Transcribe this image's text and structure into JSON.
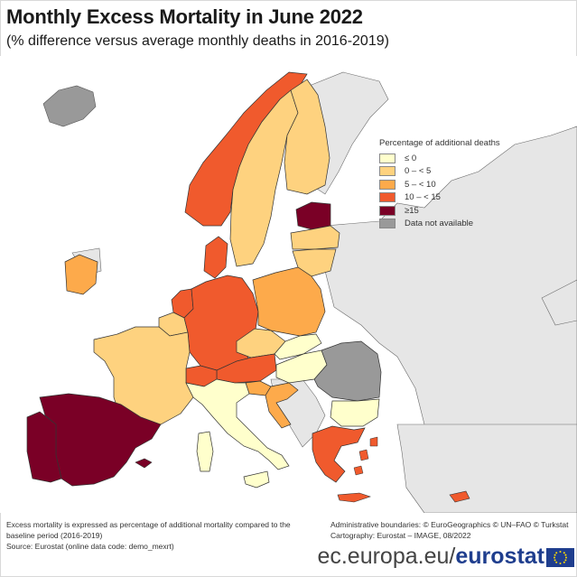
{
  "title": "Monthly Excess Mortality in June 2022",
  "subtitle": "(% difference versus average monthly deaths in 2016-2019)",
  "legend": {
    "title": "Percentage of additional deaths",
    "items": [
      {
        "label": "≤ 0",
        "color": "#ffffcc"
      },
      {
        "label": "0 – < 5",
        "color": "#fed27f"
      },
      {
        "label": "5 – < 10",
        "color": "#fdaa4b"
      },
      {
        "label": "10 – < 15",
        "color": "#f05a2d"
      },
      {
        "label": "≥15",
        "color": "#7a0026"
      },
      {
        "label": "Data not available",
        "color": "#999999"
      }
    ]
  },
  "notes": {
    "definition": "Excess mortality is expressed as percentage of additional mortality compared to the baseline period (2016-2019)",
    "source": "Source: Eurostat (online data code: demo_mexrt)",
    "boundaries": "Administrative boundaries: © EuroGeographics © UN–FAO © Turkstat",
    "cartography": "Cartography: Eurostat – IMAGE, 08/2022"
  },
  "footer": {
    "url": "ec.europa.eu/",
    "brand": "eurostat"
  },
  "countries": [
    {
      "name": "Spain",
      "category": "≥15"
    },
    {
      "name": "Portugal",
      "category": "≥15"
    },
    {
      "name": "Estonia",
      "category": "≥15"
    },
    {
      "name": "Norway",
      "category": "10 – < 15"
    },
    {
      "name": "Germany",
      "category": "10 – < 15"
    },
    {
      "name": "Netherlands",
      "category": "10 – < 15"
    },
    {
      "name": "Austria",
      "category": "10 – < 15"
    },
    {
      "name": "Greece",
      "category": "10 – < 15"
    },
    {
      "name": "Denmark",
      "category": "10 – < 15"
    },
    {
      "name": "Switzerland",
      "category": "10 – < 15"
    },
    {
      "name": "Cyprus",
      "category": "10 – < 15"
    },
    {
      "name": "Iceland",
      "category": "Data not available"
    },
    {
      "name": "Sweden",
      "category": "0 – < 5"
    },
    {
      "name": "Finland",
      "category": "0 – < 5"
    },
    {
      "name": "France",
      "category": "0 – < 5"
    },
    {
      "name": "Belgium",
      "category": "0 – < 5"
    },
    {
      "name": "Latvia",
      "category": "0 – < 5"
    },
    {
      "name": "Lithuania",
      "category": "0 – < 5"
    },
    {
      "name": "Czechia",
      "category": "0 – < 5"
    },
    {
      "name": "Ireland",
      "category": "5 – < 10"
    },
    {
      "name": "Poland",
      "category": "5 – < 10"
    },
    {
      "name": "Slovenia",
      "category": "5 – < 10"
    },
    {
      "name": "Croatia",
      "category": "5 – < 10"
    },
    {
      "name": "Italy",
      "category": "≤ 0"
    },
    {
      "name": "Hungary",
      "category": "≤ 0"
    },
    {
      "name": "Bulgaria",
      "category": "≤ 0"
    },
    {
      "name": "Slovakia",
      "category": "≤ 0"
    },
    {
      "name": "Romania",
      "category": "Data not available"
    }
  ]
}
